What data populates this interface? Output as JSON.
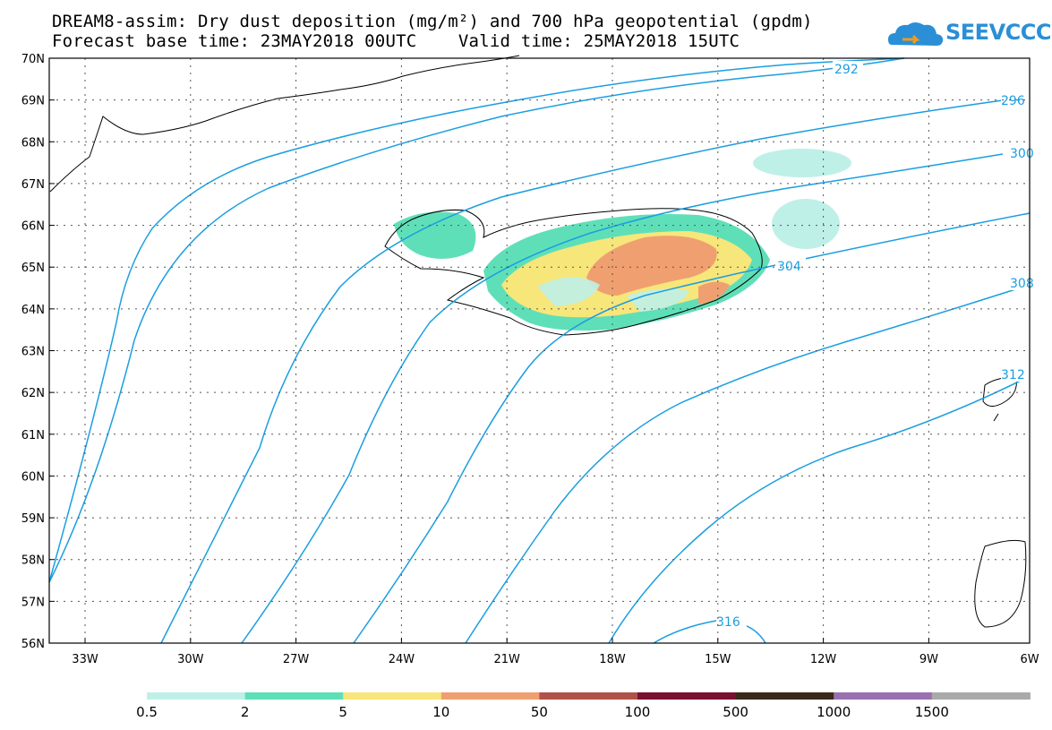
{
  "title": {
    "line1": "DREAM8-assim: Dry dust deposition (mg/m²) and 700 hPa geopotential (gpdm)",
    "line2": "Forecast base time: 23MAY2018 00UTC    Valid time: 25MAY2018 15UTC"
  },
  "logo": {
    "text": "SEEVCCC",
    "icon": "cloud-logo-icon"
  },
  "map": {
    "lat_labels": [
      "70N",
      "69N",
      "68N",
      "67N",
      "66N",
      "65N",
      "64N",
      "63N",
      "62N",
      "61N",
      "60N",
      "59N",
      "58N",
      "57N",
      "56N"
    ],
    "lon_labels": [
      "33W",
      "30W",
      "27W",
      "24W",
      "21W",
      "18W",
      "15W",
      "12W",
      "9W",
      "6W"
    ],
    "contour_labels": [
      "292",
      "296",
      "300",
      "304",
      "308",
      "312",
      "316"
    ],
    "colors": {
      "contour": "#1a9ee0",
      "coast": "#000000"
    }
  },
  "legend": {
    "labels": [
      "0.5",
      "2",
      "5",
      "10",
      "50",
      "100",
      "500",
      "1000",
      "1500"
    ],
    "colors": [
      "#bff0e8",
      "#5fdfb8",
      "#f7e67a",
      "#f0a070",
      "#b05048",
      "#7a1030",
      "#3a2a1a",
      "#9a70b0",
      "#aaaaaa"
    ]
  }
}
